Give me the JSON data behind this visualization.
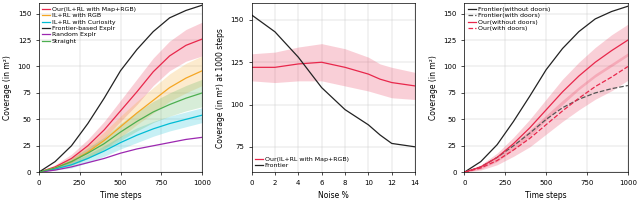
{
  "fig_width": 6.4,
  "fig_height": 2.1,
  "dpi": 100,
  "plot1": {
    "xlabel": "Time steps",
    "ylabel": "Coverage (in m²)",
    "xlim": [
      0,
      1000
    ],
    "ylim": [
      0,
      160
    ],
    "yticks": [
      0,
      25,
      50,
      75,
      100,
      125,
      150
    ],
    "xticks": [
      0,
      250,
      500,
      750,
      1000
    ],
    "lines": [
      {
        "label": "Our(IL+RL with Map+RGB)",
        "color": "#e8274b",
        "style": "-",
        "mean": [
          0,
          5,
          13,
          25,
          40,
          58,
          76,
          95,
          110,
          120,
          126
        ],
        "std": [
          0,
          2,
          4,
          6,
          8,
          10,
          12,
          13,
          14,
          15,
          16
        ]
      },
      {
        "label": "IL+RL with RGB",
        "color": "#f5a623",
        "style": "-",
        "mean": [
          0,
          4,
          10,
          19,
          30,
          43,
          56,
          68,
          80,
          89,
          96
        ],
        "std": [
          0,
          2,
          4,
          6,
          8,
          10,
          11,
          12,
          13,
          14,
          14
        ]
      },
      {
        "label": "IL+RL with Curiosity",
        "color": "#00bcd4",
        "style": "-",
        "mean": [
          0,
          3,
          7,
          13,
          20,
          28,
          35,
          41,
          46,
          50,
          54
        ],
        "std": [
          0,
          1,
          3,
          4,
          5,
          6,
          7,
          7,
          7,
          7,
          7
        ]
      },
      {
        "label": "Frontier-based Explr",
        "color": "#222222",
        "style": "-",
        "mean": [
          0,
          10,
          25,
          46,
          70,
          96,
          116,
          133,
          146,
          153,
          158
        ],
        "std": null
      },
      {
        "label": "Random Explr",
        "color": "#9c27b0",
        "style": "-",
        "mean": [
          0,
          2,
          5,
          9,
          13,
          18,
          22,
          25,
          28,
          31,
          33
        ],
        "std": null
      },
      {
        "label": "Straight",
        "color": "#4caf50",
        "style": "-",
        "mean": [
          0,
          4,
          10,
          18,
          27,
          38,
          48,
          57,
          64,
          70,
          75
        ],
        "std": [
          0,
          1,
          3,
          5,
          6,
          8,
          9,
          10,
          11,
          12,
          13
        ]
      }
    ],
    "x_points": 11,
    "legend_loc": "upper left"
  },
  "plot2": {
    "xlabel": "Noise %",
    "ylabel": "Coverage (in m²) at 1000 steps",
    "xlim": [
      0,
      14
    ],
    "ylim": [
      60,
      160
    ],
    "yticks": [
      75,
      100,
      125,
      150
    ],
    "xticks": [
      0,
      2,
      4,
      6,
      8,
      10,
      12,
      14
    ],
    "lines": [
      {
        "label": "Our(IL+RL with Map+RGB)",
        "color": "#e8274b",
        "style": "-",
        "mean": [
          122,
          122,
          124,
          125,
          122,
          118,
          115,
          113,
          111
        ],
        "std": [
          8,
          9,
          10,
          11,
          11,
          10,
          9,
          9,
          8
        ]
      },
      {
        "label": "Frontier",
        "color": "#222222",
        "style": "-",
        "mean": [
          153,
          143,
          128,
          110,
          97,
          88,
          82,
          77,
          75
        ],
        "std": null
      }
    ],
    "x_points": [
      0,
      2,
      4,
      6,
      8,
      10,
      11,
      12,
      14
    ],
    "legend_loc": "lower left"
  },
  "plot3": {
    "xlabel": "Time steps",
    "ylabel": "Coverage (in m²)",
    "xlim": [
      0,
      1000
    ],
    "ylim": [
      0,
      160
    ],
    "yticks": [
      0,
      25,
      50,
      75,
      100,
      125,
      150
    ],
    "xticks": [
      0,
      250,
      500,
      750,
      1000
    ],
    "lines": [
      {
        "label": "Frontier(without doors)",
        "color": "#222222",
        "style": "-",
        "mean": [
          0,
          10,
          26,
          48,
          72,
          97,
          117,
          133,
          145,
          152,
          157
        ],
        "std": null
      },
      {
        "label": "Frontier(with doors)",
        "color": "#555555",
        "style": "--",
        "mean": [
          0,
          5,
          14,
          25,
          37,
          50,
          61,
          69,
          75,
          79,
          82
        ],
        "std": null
      },
      {
        "label": "Our(without doors)",
        "color": "#e8274b",
        "style": "-",
        "mean": [
          0,
          5,
          14,
          27,
          42,
          59,
          76,
          91,
          104,
          115,
          125
        ],
        "std": [
          0,
          2,
          4,
          6,
          8,
          10,
          12,
          13,
          14,
          15,
          15
        ]
      },
      {
        "label": "Our(with doors)",
        "color": "#e8274b",
        "style": "--",
        "mean": [
          0,
          4,
          11,
          21,
          32,
          45,
          58,
          70,
          81,
          90,
          100
        ],
        "std": [
          0,
          2,
          4,
          6,
          8,
          9,
          10,
          11,
          12,
          13,
          13
        ]
      }
    ],
    "x_points": 11,
    "legend_loc": "upper left"
  }
}
